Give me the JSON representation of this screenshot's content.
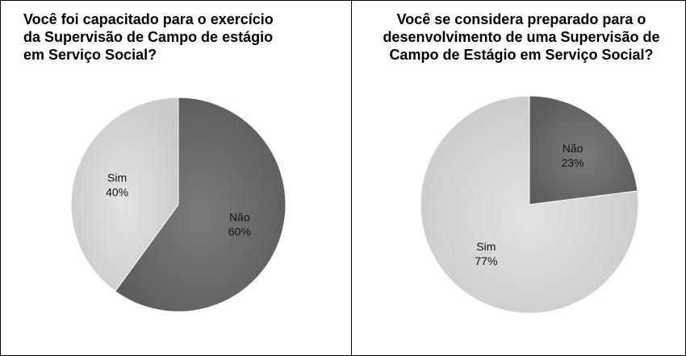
{
  "chart_data": [
    {
      "type": "pie",
      "title": "Você foi capacitado para o exercício da Supervisão de Campo de estágio em Serviço Social?",
      "slices": [
        {
          "label": "Não",
          "value": 60,
          "value_label": "60%",
          "color": "#6b6b6b"
        },
        {
          "label": "Sim",
          "value": 40,
          "value_label": "40%",
          "color": "#d6d6d6"
        }
      ]
    },
    {
      "type": "pie",
      "title": "Você se considera preparado para o desenvolvimento de uma Supervisão de Campo de Estágio em Serviço Social?",
      "slices": [
        {
          "label": "Não",
          "value": 23,
          "value_label": "23%",
          "color": "#6b6b6b"
        },
        {
          "label": "Sim",
          "value": 77,
          "value_label": "77%",
          "color": "#d6d6d6"
        }
      ]
    }
  ]
}
